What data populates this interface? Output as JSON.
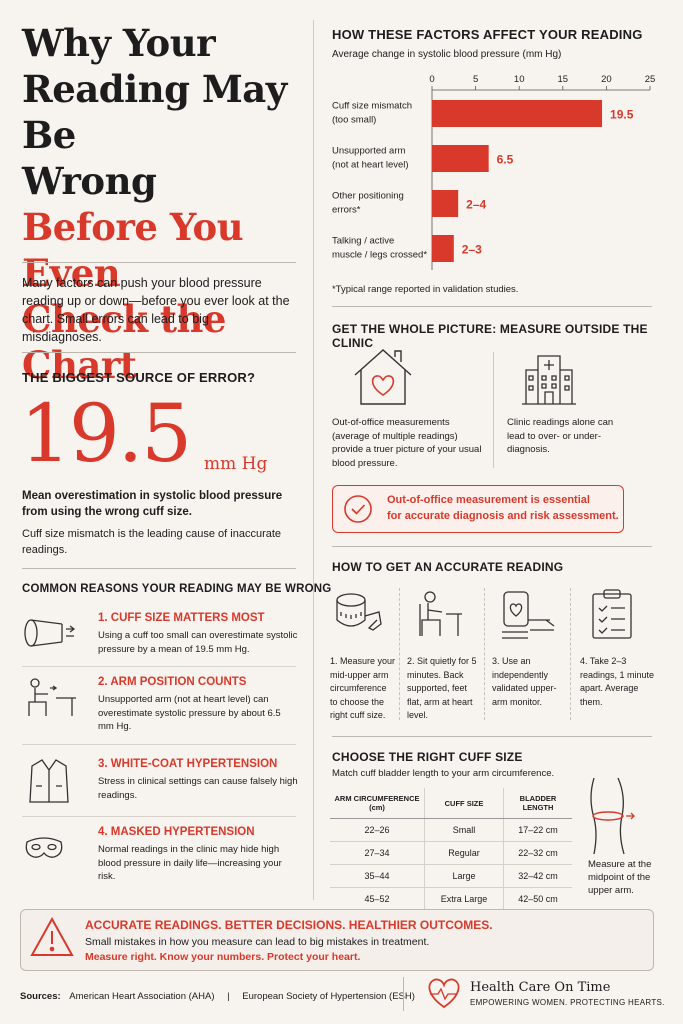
{
  "title": {
    "line1": "Why Your",
    "line2": "Reading May Be",
    "line3": "Wrong",
    "line4": "Before You Even",
    "line5": "Check the Chart"
  },
  "intro": "Many factors can push your blood pressure reading up or down—before you ever look at the chart. Small errors can lead to big misdiagnoses.",
  "biggest": {
    "heading": "THE BIGGEST SOURCE OF ERROR?",
    "value": "19.5",
    "unit": "mm Hg",
    "desc": "Mean overestimation in systolic blood pressure from using the wrong cuff size.",
    "note": "Cuff size mismatch is the leading cause of inaccurate readings."
  },
  "reasons": {
    "heading": "COMMON REASONS YOUR READING MAY BE WRONG",
    "items": [
      {
        "title": "1. CUFF SIZE MATTERS MOST",
        "body": "Using a cuff too small can overestimate systolic pressure by a mean of 19.5 mm Hg.",
        "icon": "cuff-icon"
      },
      {
        "title": "2. ARM POSITION COUNTS",
        "body": "Unsupported arm (not at heart level) can overestimate systolic pressure by about 6.5 mm Hg.",
        "icon": "seated-person-icon"
      },
      {
        "title": "3. WHITE-COAT HYPERTENSION",
        "body": "Stress in clinical settings can cause falsely high readings.",
        "icon": "lab-coat-icon"
      },
      {
        "title": "4. MASKED HYPERTENSION",
        "body": "Normal readings in the clinic may hide high blood pressure in daily life—increasing your risk.",
        "icon": "mask-icon"
      }
    ]
  },
  "chart_data": {
    "type": "bar",
    "title": "HOW THESE FACTORS AFFECT YOUR READING",
    "subtitle": "Average change in systolic blood pressure (mm Hg)",
    "orientation": "horizontal",
    "categories": [
      [
        "Cuff size mismatch",
        "(too small)"
      ],
      [
        "Unsupported arm",
        "(not at heart level)"
      ],
      [
        "Other positioning",
        "errors*"
      ],
      [
        "Talking / active",
        "muscle / legs crossed*"
      ]
    ],
    "values": [
      19.5,
      6.5,
      3,
      2.5
    ],
    "labels": [
      "19.5",
      "6.5",
      "2–4",
      "2–3"
    ],
    "ticks": [
      "0",
      "5",
      "10",
      "15",
      "20",
      "25"
    ],
    "xlim": [
      0,
      25
    ],
    "grid": false,
    "bar_color": "#d9392b",
    "footnote": "*Typical range reported in validation studies."
  },
  "picture": {
    "heading": "GET THE WHOLE PICTURE: MEASURE OUTSIDE THE CLINIC",
    "left": "Out-of-office measurements (average of multiple readings) provide a truer picture of your usual blood pressure.",
    "right": "Clinic readings alone can lead to over- or under-diagnosis.",
    "callout_l1": "Out-of-office measurement is essential",
    "callout_l2": "for accurate diagnosis and risk assessment."
  },
  "accurate": {
    "heading": "HOW TO GET AN ACCURATE READING",
    "steps": [
      {
        "text": "1. Measure your mid-upper arm circumference to choose the right cuff size.",
        "icon": "measuring-tape-icon"
      },
      {
        "text": "2. Sit quietly for 5 minutes. Back supported, feet flat, arm at heart level.",
        "icon": "seated-chair-icon"
      },
      {
        "text": "3. Use an independently validated upper-arm monitor.",
        "icon": "bp-monitor-icon"
      },
      {
        "text": "4. Take 2–3 readings, 1 minute apart. Average them.",
        "icon": "clipboard-checklist-icon"
      }
    ]
  },
  "cuff": {
    "heading": "CHOOSE THE RIGHT CUFF SIZE",
    "sub": "Match cuff bladder length to your arm circumference.",
    "columns": [
      "ARM CIRCUMFERENCE (cm)",
      "CUFF SIZE",
      "BLADDER LENGTH"
    ],
    "rows": [
      [
        "22–26",
        "Small",
        "17–22 cm"
      ],
      [
        "27–34",
        "Regular",
        "22–32 cm"
      ],
      [
        "35–44",
        "Large",
        "32–42 cm"
      ],
      [
        "45–52",
        "Extra Large",
        "42–50 cm"
      ]
    ],
    "note": "Measure at the midpoint of the upper arm."
  },
  "banner": {
    "heading": "ACCURATE READINGS. BETTER DECISIONS. HEALTHIER OUTCOMES.",
    "line": "Small mistakes in how you measure can lead to big mistakes in treatment.",
    "cta": "Measure right. Know your numbers. Protect your heart."
  },
  "footer": {
    "sources_label": "Sources:",
    "source1": "American Heart Association (AHA)",
    "sep": "|",
    "source2": "European Society of Hypertension (ESH)",
    "brand": "Health Care On Time",
    "tagline": "EMPOWERING WOMEN. PROTECTING HEARTS."
  },
  "colors": {
    "accent": "#d9392b",
    "background": "#f7f3ee",
    "text": "#1d1d1d"
  }
}
